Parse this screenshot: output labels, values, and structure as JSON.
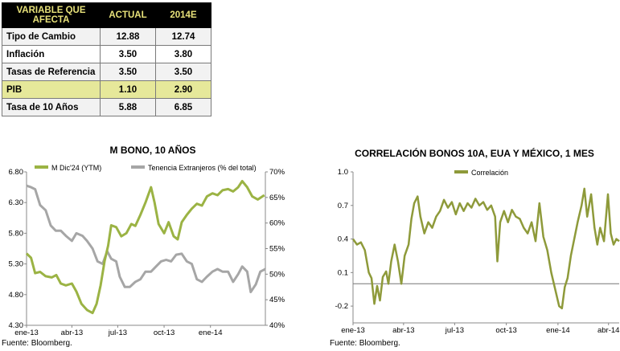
{
  "table": {
    "headers": [
      "VARIABLE QUE AFECTA",
      "ACTUAL",
      "2014E"
    ],
    "rows": [
      {
        "label": "Tipo de Cambio",
        "actual": "12.88",
        "estimate": "12.74",
        "highlight": false
      },
      {
        "label": "Inflación",
        "actual": "3.50",
        "estimate": "3.80",
        "highlight": false
      },
      {
        "label": "Tasas de Referencia",
        "actual": "3.50",
        "estimate": "3.50",
        "highlight": false
      },
      {
        "label": "PIB",
        "actual": "1.10",
        "estimate": "2.90",
        "highlight": true
      },
      {
        "label": "Tasa de 10 Años",
        "actual": "5.88",
        "estimate": "6.85",
        "highlight": false
      }
    ]
  },
  "colors": {
    "green": "#9bb344",
    "gray": "#a6a6a6",
    "olive": "#8e9a3a",
    "highlight": "#e6e89a",
    "header_text": "#e8e27a"
  },
  "chart_data": [
    {
      "type": "line",
      "title": "M BONO, 10 AÑOS",
      "x_tick_labels": [
        "ene-13",
        "abr-13",
        "jul-13",
        "oct-13",
        "ene-14"
      ],
      "x_range": [
        "2013-01-01",
        "2014-04-20"
      ],
      "y_left": {
        "ticks": [
          "4.30",
          "4.80",
          "5.30",
          "5.80",
          "6.30",
          "6.80"
        ],
        "range": [
          4.3,
          6.8
        ]
      },
      "y_right": {
        "ticks": [
          "40%",
          "45%",
          "50%",
          "55%",
          "60%",
          "65%",
          "70%"
        ],
        "range": [
          40,
          70
        ]
      },
      "series": [
        {
          "name": "M Dic'24 (YTM)",
          "axis": "left",
          "color": "#9bb344",
          "points": [
            [
              "2013-01-01",
              5.47
            ],
            [
              "2013-01-10",
              5.4
            ],
            [
              "2013-01-18",
              5.15
            ],
            [
              "2013-01-28",
              5.17
            ],
            [
              "2013-02-08",
              5.1
            ],
            [
              "2013-02-20",
              5.08
            ],
            [
              "2013-03-01",
              5.12
            ],
            [
              "2013-03-10",
              4.98
            ],
            [
              "2013-03-20",
              4.95
            ],
            [
              "2013-04-01",
              4.98
            ],
            [
              "2013-04-10",
              4.85
            ],
            [
              "2013-04-20",
              4.65
            ],
            [
              "2013-05-01",
              4.55
            ],
            [
              "2013-05-12",
              4.5
            ],
            [
              "2013-05-20",
              4.65
            ],
            [
              "2013-05-28",
              4.95
            ],
            [
              "2013-06-05",
              5.35
            ],
            [
              "2013-06-12",
              5.6
            ],
            [
              "2013-06-18",
              5.93
            ],
            [
              "2013-06-28",
              5.9
            ],
            [
              "2013-07-08",
              5.75
            ],
            [
              "2013-07-18",
              5.8
            ],
            [
              "2013-07-28",
              5.95
            ],
            [
              "2013-08-05",
              5.92
            ],
            [
              "2013-08-15",
              6.1
            ],
            [
              "2013-08-25",
              6.3
            ],
            [
              "2013-09-05",
              6.55
            ],
            [
              "2013-09-12",
              6.3
            ],
            [
              "2013-09-20",
              5.95
            ],
            [
              "2013-10-01",
              5.8
            ],
            [
              "2013-10-10",
              5.98
            ],
            [
              "2013-10-20",
              5.75
            ],
            [
              "2013-10-28",
              5.7
            ],
            [
              "2013-11-05",
              5.98
            ],
            [
              "2013-11-15",
              6.1
            ],
            [
              "2013-11-25",
              6.2
            ],
            [
              "2013-12-05",
              6.28
            ],
            [
              "2013-12-15",
              6.25
            ],
            [
              "2013-12-25",
              6.4
            ],
            [
              "2014-01-05",
              6.45
            ],
            [
              "2014-01-15",
              6.42
            ],
            [
              "2014-01-25",
              6.5
            ],
            [
              "2014-02-05",
              6.52
            ],
            [
              "2014-02-15",
              6.48
            ],
            [
              "2014-02-25",
              6.55
            ],
            [
              "2014-03-05",
              6.65
            ],
            [
              "2014-03-15",
              6.55
            ],
            [
              "2014-03-25",
              6.4
            ],
            [
              "2014-04-05",
              6.35
            ],
            [
              "2014-04-18",
              6.42
            ]
          ]
        },
        {
          "name": "Tenencia Extranjeros (% del total)",
          "axis": "right",
          "color": "#a6a6a6",
          "points": [
            [
              "2013-01-01",
              67.3
            ],
            [
              "2013-01-10",
              67.0
            ],
            [
              "2013-01-18",
              66.6
            ],
            [
              "2013-01-28",
              63.5
            ],
            [
              "2013-02-08",
              62.5
            ],
            [
              "2013-02-18",
              59.5
            ],
            [
              "2013-02-28",
              58.5
            ],
            [
              "2013-03-10",
              58.5
            ],
            [
              "2013-03-20",
              57.5
            ],
            [
              "2013-04-01",
              56.5
            ],
            [
              "2013-04-10",
              58.0
            ],
            [
              "2013-04-22",
              57.5
            ],
            [
              "2013-05-01",
              56.5
            ],
            [
              "2013-05-12",
              55.0
            ],
            [
              "2013-05-22",
              52.5
            ],
            [
              "2013-06-01",
              52.0
            ],
            [
              "2013-06-10",
              54.5
            ],
            [
              "2013-06-18",
              53.0
            ],
            [
              "2013-06-28",
              52.5
            ],
            [
              "2013-07-05",
              49.5
            ],
            [
              "2013-07-15",
              47.5
            ],
            [
              "2013-07-25",
              47.5
            ],
            [
              "2013-08-05",
              48.5
            ],
            [
              "2013-08-15",
              49.0
            ],
            [
              "2013-08-25",
              50.5
            ],
            [
              "2013-09-05",
              50.5
            ],
            [
              "2013-09-15",
              51.5
            ],
            [
              "2013-09-25",
              52.5
            ],
            [
              "2013-10-05",
              52.8
            ],
            [
              "2013-10-15",
              52.5
            ],
            [
              "2013-10-25",
              53.8
            ],
            [
              "2013-11-05",
              54.0
            ],
            [
              "2013-11-15",
              52.5
            ],
            [
              "2013-11-25",
              52.0
            ],
            [
              "2013-12-05",
              49.0
            ],
            [
              "2013-12-15",
              48.5
            ],
            [
              "2013-12-25",
              49.5
            ],
            [
              "2014-01-05",
              50.5
            ],
            [
              "2014-01-15",
              51.0
            ],
            [
              "2014-01-25",
              50.5
            ],
            [
              "2014-02-05",
              50.5
            ],
            [
              "2014-02-15",
              48.5
            ],
            [
              "2014-02-25",
              50.0
            ],
            [
              "2014-03-05",
              51.5
            ],
            [
              "2014-03-15",
              50.5
            ],
            [
              "2014-03-22",
              46.5
            ],
            [
              "2014-04-01",
              48.0
            ],
            [
              "2014-04-10",
              50.5
            ],
            [
              "2014-04-20",
              51.0
            ]
          ]
        }
      ],
      "source": "Fuente: Bloomberg."
    },
    {
      "type": "line",
      "title": "CORRELACIÓN BONOS 10A, EUA Y MÉXICO, 1 MES",
      "x_tick_labels": [
        "ene-13",
        "abr-13",
        "jul-13",
        "oct-13",
        "ene-14",
        "abr-14"
      ],
      "x_range": [
        "2013-01-01",
        "2014-04-20"
      ],
      "y_left": {
        "ticks": [
          "-0.2",
          "0.1",
          "0.4",
          "0.7",
          "1.0"
        ],
        "range": [
          -0.35,
          1.0
        ]
      },
      "zero_line": true,
      "series": [
        {
          "name": "Correlación",
          "axis": "left",
          "color": "#8e9a3a",
          "points": [
            [
              "2013-01-01",
              0.4
            ],
            [
              "2013-01-08",
              0.35
            ],
            [
              "2013-01-15",
              0.37
            ],
            [
              "2013-01-22",
              0.3
            ],
            [
              "2013-01-29",
              0.1
            ],
            [
              "2013-02-03",
              0.05
            ],
            [
              "2013-02-08",
              -0.18
            ],
            [
              "2013-02-13",
              -0.02
            ],
            [
              "2013-02-18",
              -0.15
            ],
            [
              "2013-02-23",
              0.06
            ],
            [
              "2013-03-01",
              0.11
            ],
            [
              "2013-03-05",
              0.0
            ],
            [
              "2013-03-10",
              0.2
            ],
            [
              "2013-03-16",
              0.35
            ],
            [
              "2013-03-22",
              0.2
            ],
            [
              "2013-03-28",
              0.0
            ],
            [
              "2013-04-03",
              0.25
            ],
            [
              "2013-04-10",
              0.35
            ],
            [
              "2013-04-15",
              0.58
            ],
            [
              "2013-04-20",
              0.72
            ],
            [
              "2013-04-26",
              0.78
            ],
            [
              "2013-05-01",
              0.6
            ],
            [
              "2013-05-08",
              0.45
            ],
            [
              "2013-05-15",
              0.55
            ],
            [
              "2013-05-22",
              0.5
            ],
            [
              "2013-05-29",
              0.6
            ],
            [
              "2013-06-05",
              0.65
            ],
            [
              "2013-06-12",
              0.75
            ],
            [
              "2013-06-19",
              0.68
            ],
            [
              "2013-06-26",
              0.73
            ],
            [
              "2013-07-03",
              0.62
            ],
            [
              "2013-07-10",
              0.72
            ],
            [
              "2013-07-17",
              0.65
            ],
            [
              "2013-07-24",
              0.72
            ],
            [
              "2013-07-31",
              0.68
            ],
            [
              "2013-08-07",
              0.76
            ],
            [
              "2013-08-14",
              0.7
            ],
            [
              "2013-08-21",
              0.73
            ],
            [
              "2013-08-28",
              0.66
            ],
            [
              "2013-09-04",
              0.7
            ],
            [
              "2013-09-11",
              0.6
            ],
            [
              "2013-09-15",
              0.2
            ],
            [
              "2013-09-20",
              0.55
            ],
            [
              "2013-09-27",
              0.65
            ],
            [
              "2013-10-04",
              0.55
            ],
            [
              "2013-10-11",
              0.66
            ],
            [
              "2013-10-18",
              0.6
            ],
            [
              "2013-10-25",
              0.58
            ],
            [
              "2013-11-01",
              0.5
            ],
            [
              "2013-11-08",
              0.45
            ],
            [
              "2013-11-15",
              0.55
            ],
            [
              "2013-11-22",
              0.38
            ],
            [
              "2013-11-29",
              0.72
            ],
            [
              "2013-12-06",
              0.42
            ],
            [
              "2013-12-13",
              0.3
            ],
            [
              "2013-12-20",
              0.1
            ],
            [
              "2013-12-27",
              -0.05
            ],
            [
              "2014-01-03",
              -0.2
            ],
            [
              "2014-01-08",
              -0.22
            ],
            [
              "2014-01-13",
              -0.03
            ],
            [
              "2014-01-18",
              0.05
            ],
            [
              "2014-01-24",
              0.25
            ],
            [
              "2014-01-30",
              0.4
            ],
            [
              "2014-02-05",
              0.55
            ],
            [
              "2014-02-12",
              0.7
            ],
            [
              "2014-02-17",
              0.85
            ],
            [
              "2014-02-22",
              0.6
            ],
            [
              "2014-03-01",
              0.8
            ],
            [
              "2014-03-07",
              0.5
            ],
            [
              "2014-03-12",
              0.35
            ],
            [
              "2014-03-17",
              0.5
            ],
            [
              "2014-03-24",
              0.38
            ],
            [
              "2014-03-31",
              0.8
            ],
            [
              "2014-04-05",
              0.45
            ],
            [
              "2014-04-10",
              0.35
            ],
            [
              "2014-04-15",
              0.4
            ],
            [
              "2014-04-20",
              0.38
            ]
          ]
        }
      ],
      "source": "Fuente: Bloomberg."
    }
  ]
}
